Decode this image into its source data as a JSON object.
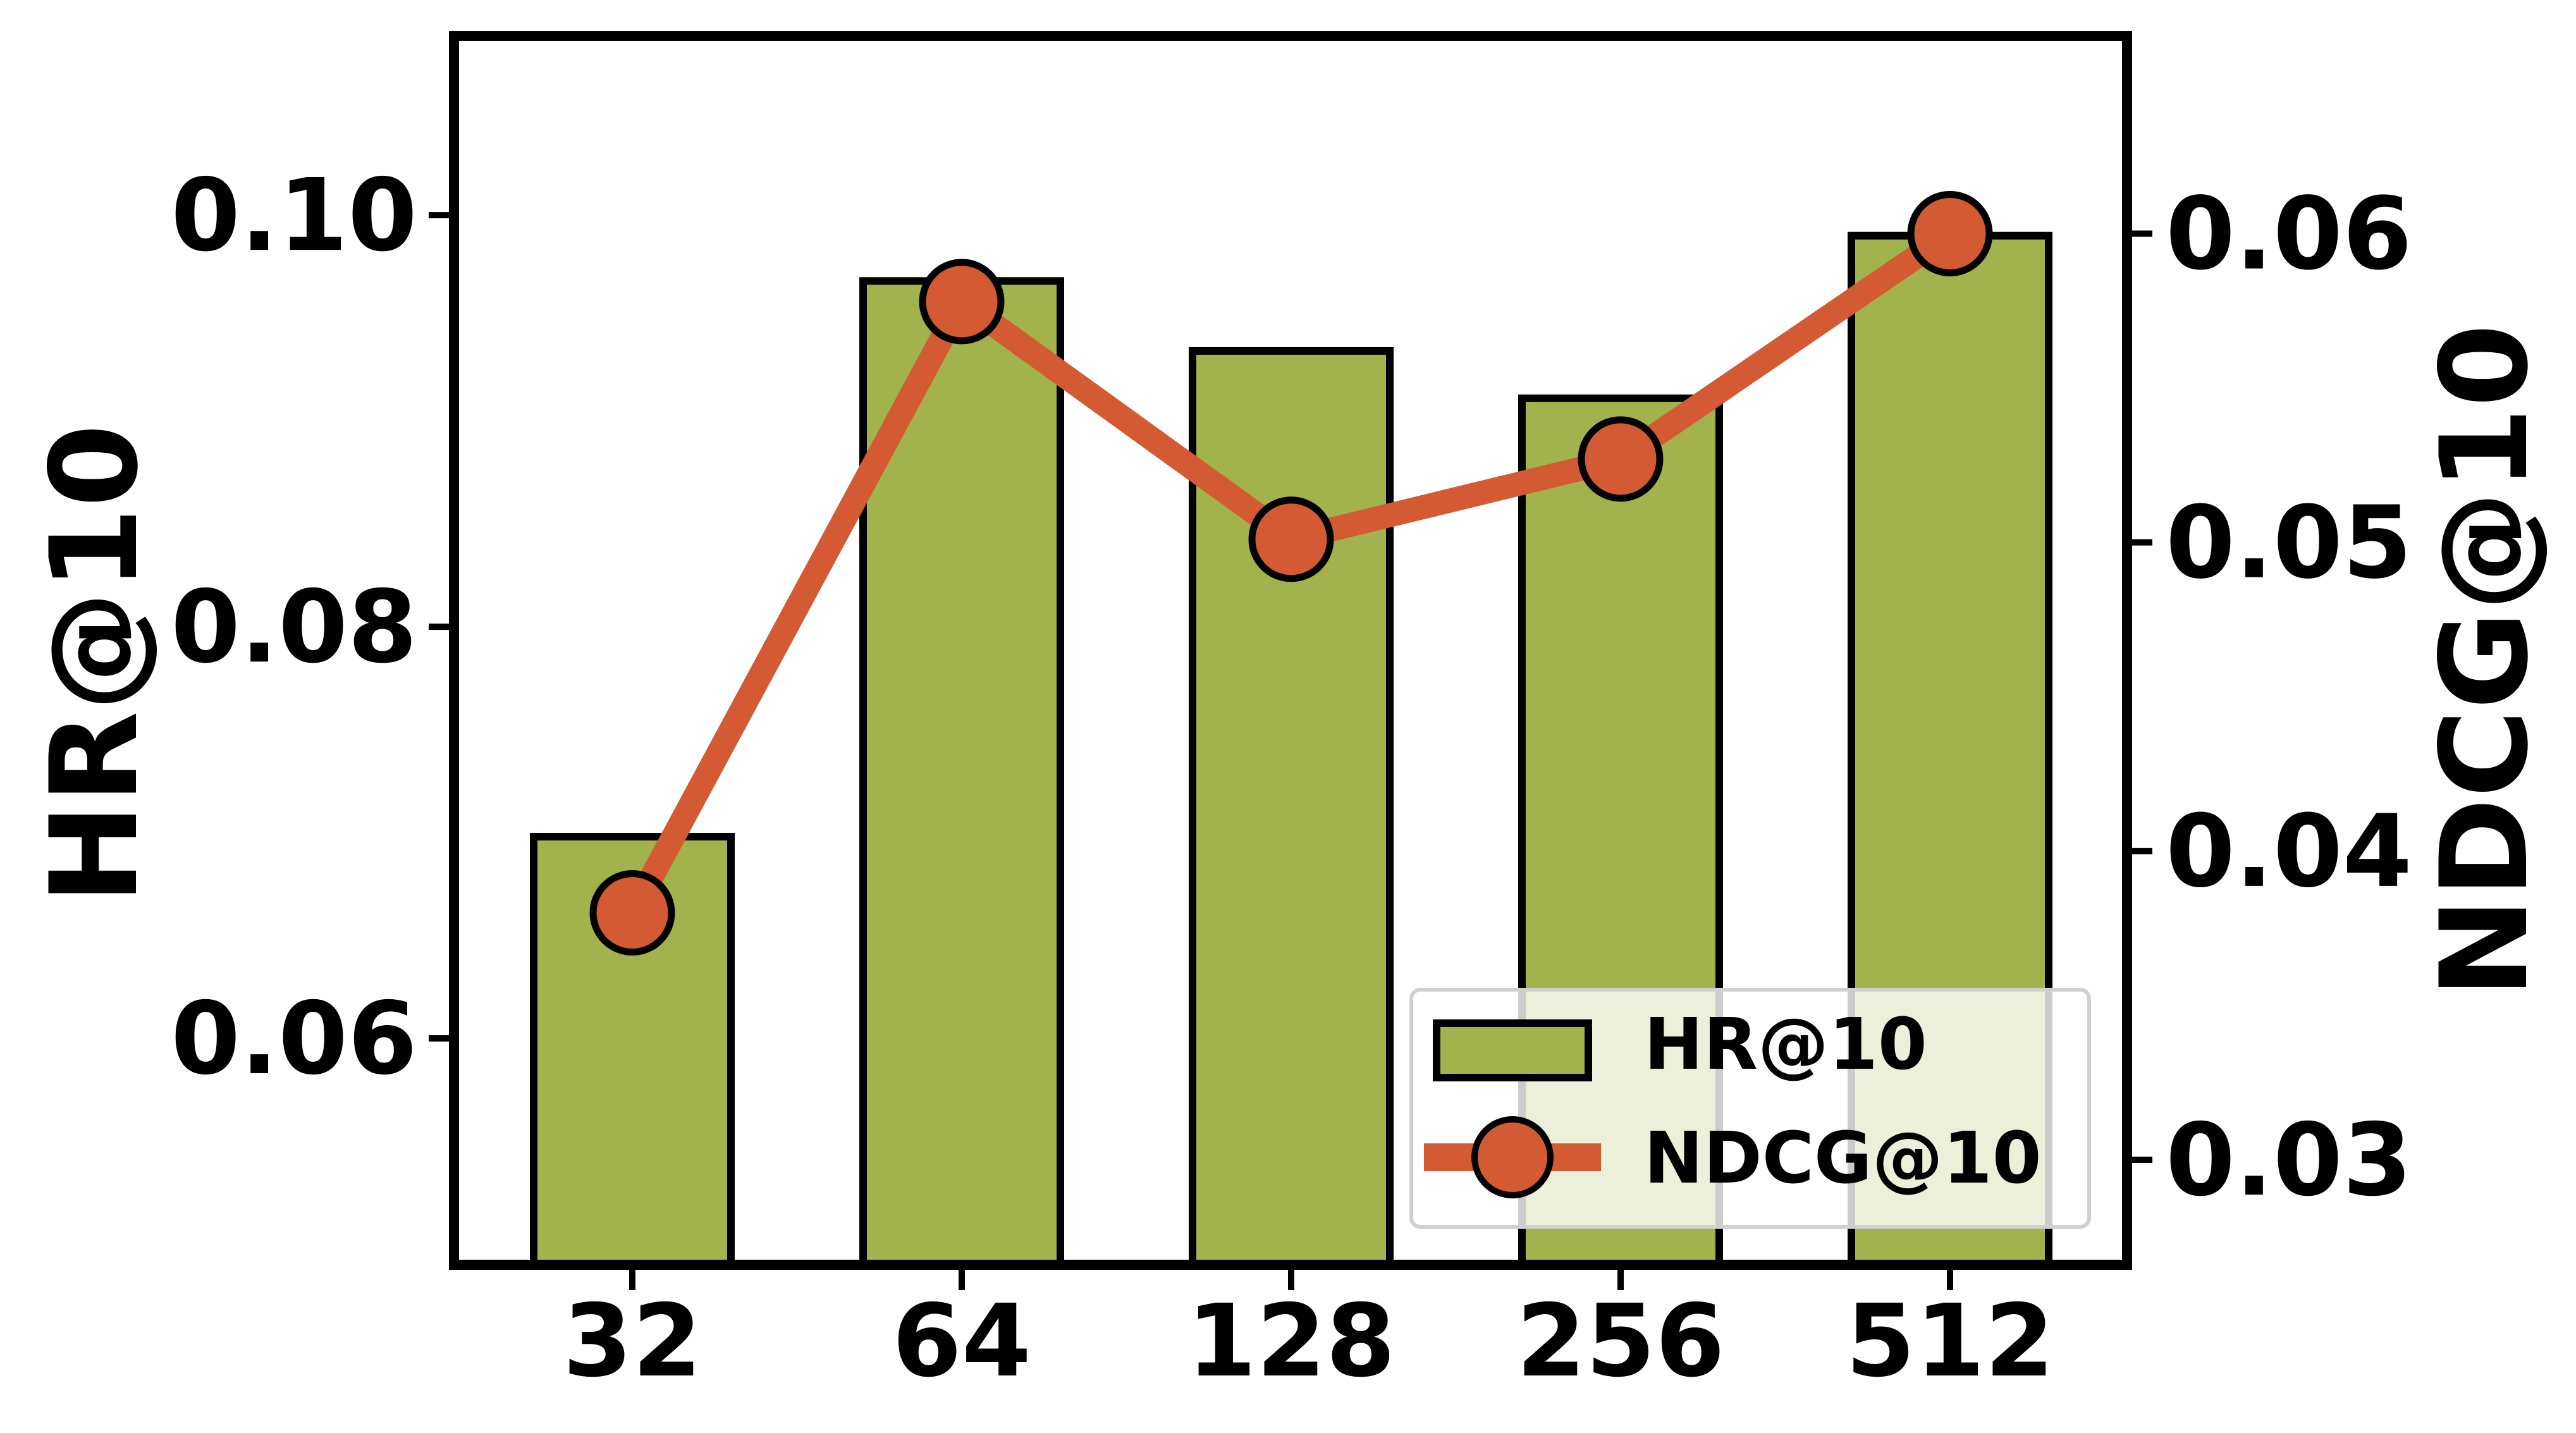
{
  "chart_data": {
    "type": "bar+line",
    "categories": [
      "32",
      "64",
      "128",
      "256",
      "512"
    ],
    "series": [
      {
        "name": "HR@10",
        "type": "bar",
        "axis": "left",
        "values": [
          0.0698,
          0.0968,
          0.0934,
          0.0911,
          0.099
        ],
        "color": "#a2b34d"
      },
      {
        "name": "NDCG@10",
        "type": "line",
        "axis": "right",
        "values": [
          0.038,
          0.0578,
          0.0501,
          0.0527,
          0.06
        ],
        "color": "#d35a32"
      }
    ],
    "xlabel": "",
    "ylabel_left": "HR@10",
    "ylabel_right": "NDCG@10",
    "ylim_left": [
      0.049,
      0.1087
    ],
    "ylim_right": [
      0.0266,
      0.0664
    ],
    "yticks_left": [
      "0.06",
      "0.08",
      "0.10"
    ],
    "yticks_right": [
      "0.03",
      "0.04",
      "0.05",
      "0.06"
    ],
    "grid": false,
    "legend": {
      "position": "bottom-right",
      "entries": [
        "HR@10",
        "NDCG@10"
      ]
    }
  }
}
